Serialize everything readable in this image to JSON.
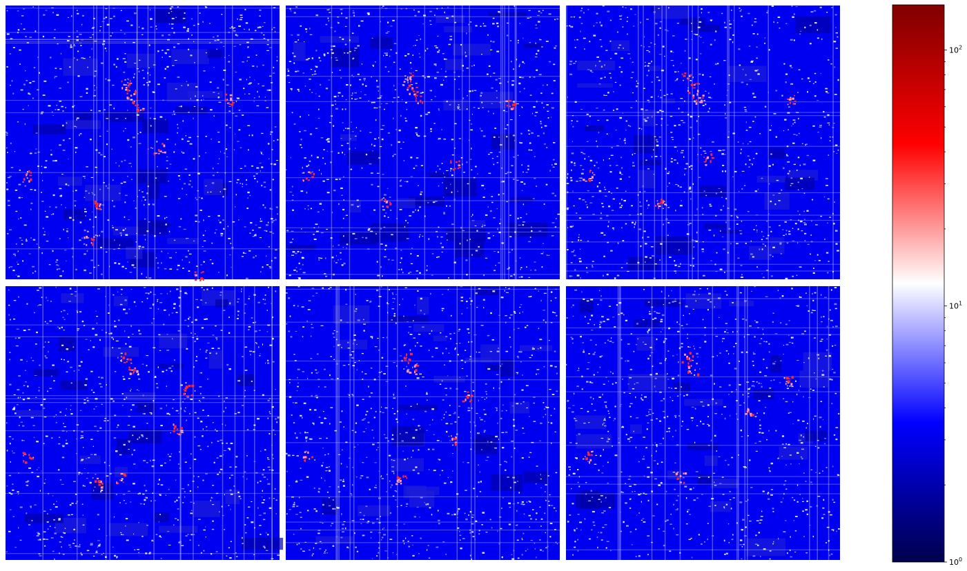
{
  "chart_data": {
    "type": "heatmap",
    "layout": {
      "rows": 2,
      "cols": 3
    },
    "panels": [
      {
        "id": "r1c1",
        "bright_spots": [
          [
            0.46,
            0.32
          ],
          [
            0.44,
            0.28
          ],
          [
            0.48,
            0.36
          ],
          [
            0.82,
            0.34
          ],
          [
            0.56,
            0.52
          ],
          [
            0.08,
            0.62
          ],
          [
            0.34,
            0.72
          ],
          [
            0.3,
            0.86
          ],
          [
            0.7,
            0.99
          ]
        ]
      },
      {
        "id": "r1c2",
        "bright_spots": [
          [
            0.46,
            0.3
          ],
          [
            0.44,
            0.26
          ],
          [
            0.48,
            0.34
          ],
          [
            0.82,
            0.36
          ],
          [
            0.62,
            0.58
          ],
          [
            0.08,
            0.62
          ],
          [
            0.36,
            0.72
          ]
        ]
      },
      {
        "id": "r1c3",
        "bright_spots": [
          [
            0.46,
            0.3
          ],
          [
            0.44,
            0.26
          ],
          [
            0.48,
            0.34
          ],
          [
            0.82,
            0.34
          ],
          [
            0.52,
            0.56
          ],
          [
            0.08,
            0.62
          ],
          [
            0.34,
            0.72
          ]
        ]
      },
      {
        "id": "r2c1",
        "bright_spots": [
          [
            0.46,
            0.3
          ],
          [
            0.44,
            0.26
          ],
          [
            0.66,
            0.38
          ],
          [
            0.62,
            0.52
          ],
          [
            0.08,
            0.62
          ],
          [
            0.42,
            0.7
          ],
          [
            0.34,
            0.72
          ]
        ]
      },
      {
        "id": "r2c2",
        "bright_spots": [
          [
            0.46,
            0.3
          ],
          [
            0.44,
            0.26
          ],
          [
            0.66,
            0.4
          ],
          [
            0.62,
            0.56
          ],
          [
            0.08,
            0.62
          ],
          [
            0.42,
            0.7
          ]
        ]
      },
      {
        "id": "r2c3",
        "bright_spots": [
          [
            0.46,
            0.3
          ],
          [
            0.44,
            0.26
          ],
          [
            0.82,
            0.34
          ],
          [
            0.66,
            0.46
          ],
          [
            0.08,
            0.62
          ],
          [
            0.42,
            0.7
          ]
        ]
      }
    ],
    "colorbar": {
      "colormap": "seismic",
      "scale": "log",
      "min": 1,
      "max": 150,
      "ticks": [
        {
          "value": 1,
          "base": "10",
          "exp": "0"
        },
        {
          "value": 10,
          "base": "10",
          "exp": "1"
        },
        {
          "value": 100,
          "base": "10",
          "exp": "2"
        }
      ],
      "minor_ticks": [
        2,
        3,
        4,
        5,
        6,
        7,
        8,
        9,
        20,
        30,
        40,
        50,
        60,
        70,
        80,
        90
      ]
    },
    "axes_visible": false,
    "grid": false,
    "background_color": "#0000f0"
  }
}
